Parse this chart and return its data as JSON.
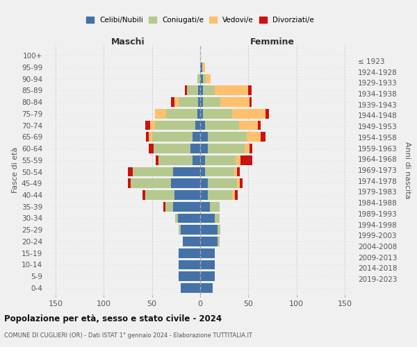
{
  "age_groups": [
    "0-4",
    "5-9",
    "10-14",
    "15-19",
    "20-24",
    "25-29",
    "30-34",
    "35-39",
    "40-44",
    "45-49",
    "50-54",
    "55-59",
    "60-64",
    "65-69",
    "70-74",
    "75-79",
    "80-84",
    "85-89",
    "90-94",
    "95-99",
    "100+"
  ],
  "birth_years": [
    "2019-2023",
    "2014-2018",
    "2009-2013",
    "2004-2008",
    "1999-2003",
    "1994-1998",
    "1989-1993",
    "1984-1988",
    "1979-1983",
    "1974-1978",
    "1969-1973",
    "1964-1968",
    "1959-1963",
    "1954-1958",
    "1949-1953",
    "1944-1948",
    "1939-1943",
    "1934-1938",
    "1929-1933",
    "1924-1928",
    "≤ 1923"
  ],
  "maschi": {
    "celibi": [
      20,
      22,
      22,
      22,
      18,
      20,
      23,
      28,
      27,
      30,
      28,
      8,
      10,
      8,
      5,
      3,
      2,
      2,
      0,
      0,
      0
    ],
    "coniugati": [
      0,
      0,
      0,
      0,
      0,
      2,
      3,
      8,
      30,
      42,
      42,
      35,
      38,
      42,
      42,
      32,
      20,
      12,
      3,
      0,
      0
    ],
    "vedovi": [
      0,
      0,
      0,
      0,
      0,
      0,
      0,
      0,
      0,
      0,
      0,
      0,
      0,
      3,
      5,
      12,
      5,
      0,
      0,
      0,
      0
    ],
    "divorziati": [
      0,
      0,
      0,
      0,
      0,
      0,
      0,
      2,
      3,
      3,
      5,
      3,
      5,
      3,
      5,
      0,
      3,
      2,
      0,
      0,
      0
    ]
  },
  "femmine": {
    "nubili": [
      13,
      15,
      15,
      15,
      18,
      18,
      15,
      10,
      8,
      8,
      5,
      5,
      8,
      8,
      5,
      3,
      3,
      3,
      3,
      2,
      0
    ],
    "coniugate": [
      0,
      0,
      0,
      0,
      2,
      3,
      5,
      10,
      25,
      30,
      30,
      32,
      38,
      40,
      35,
      30,
      18,
      12,
      3,
      0,
      0
    ],
    "vedove": [
      0,
      0,
      0,
      0,
      0,
      0,
      0,
      0,
      3,
      3,
      3,
      5,
      5,
      15,
      20,
      35,
      30,
      35,
      5,
      3,
      0
    ],
    "divorziate": [
      0,
      0,
      0,
      0,
      0,
      0,
      0,
      0,
      3,
      3,
      3,
      12,
      3,
      5,
      3,
      3,
      2,
      3,
      0,
      0,
      0
    ]
  },
  "colors": {
    "celibi": "#4472a8",
    "coniugati": "#b5c98e",
    "vedovi": "#ffc06e",
    "divorziati": "#cc1111"
  },
  "xlim": 160,
  "title": "Popolazione per età, sesso e stato civile - 2024",
  "subtitle": "COMUNE DI CUGLIERI (OR) - Dati ISTAT 1° gennaio 2024 - Elaborazione TUTTITALIA.IT",
  "legend_labels": [
    "Celibi/Nubili",
    "Coniugati/e",
    "Vedovi/e",
    "Divorziati/e"
  ],
  "background_color": "#f0f0f0"
}
